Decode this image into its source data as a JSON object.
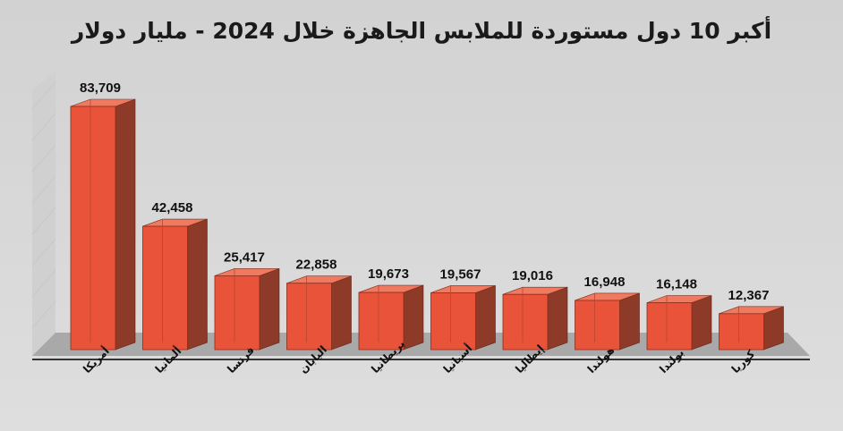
{
  "chart_data": {
    "type": "bar",
    "title": "أكبر 10 دول مستوردة للملابس الجاهزة خلال 2024 - مليار دولار",
    "categories": [
      "أمريكا",
      "ألمانيا",
      "فرنسا",
      "اليابان",
      "بريطانيا",
      "أسبانيا",
      "إيطاليا",
      "هولندا",
      "بولندا",
      "كوريا"
    ],
    "values": [
      83709,
      42458,
      25417,
      22858,
      19673,
      19567,
      19016,
      16948,
      16148,
      12367
    ],
    "value_labels": [
      "83,709",
      "42,458",
      "25,417",
      "22,858",
      "19,673",
      "19,567",
      "19,016",
      "16,948",
      "16,148",
      "12,367"
    ],
    "ylim": [
      0,
      90000
    ],
    "grid": false,
    "legend": "none",
    "style": "3d-column",
    "colors": {
      "bar_front": "#e8533a",
      "bar_side": "#8e3a28",
      "bar_top": "#f07a60",
      "floor": "#a9a9a9",
      "background": "#d6d6d6"
    }
  }
}
